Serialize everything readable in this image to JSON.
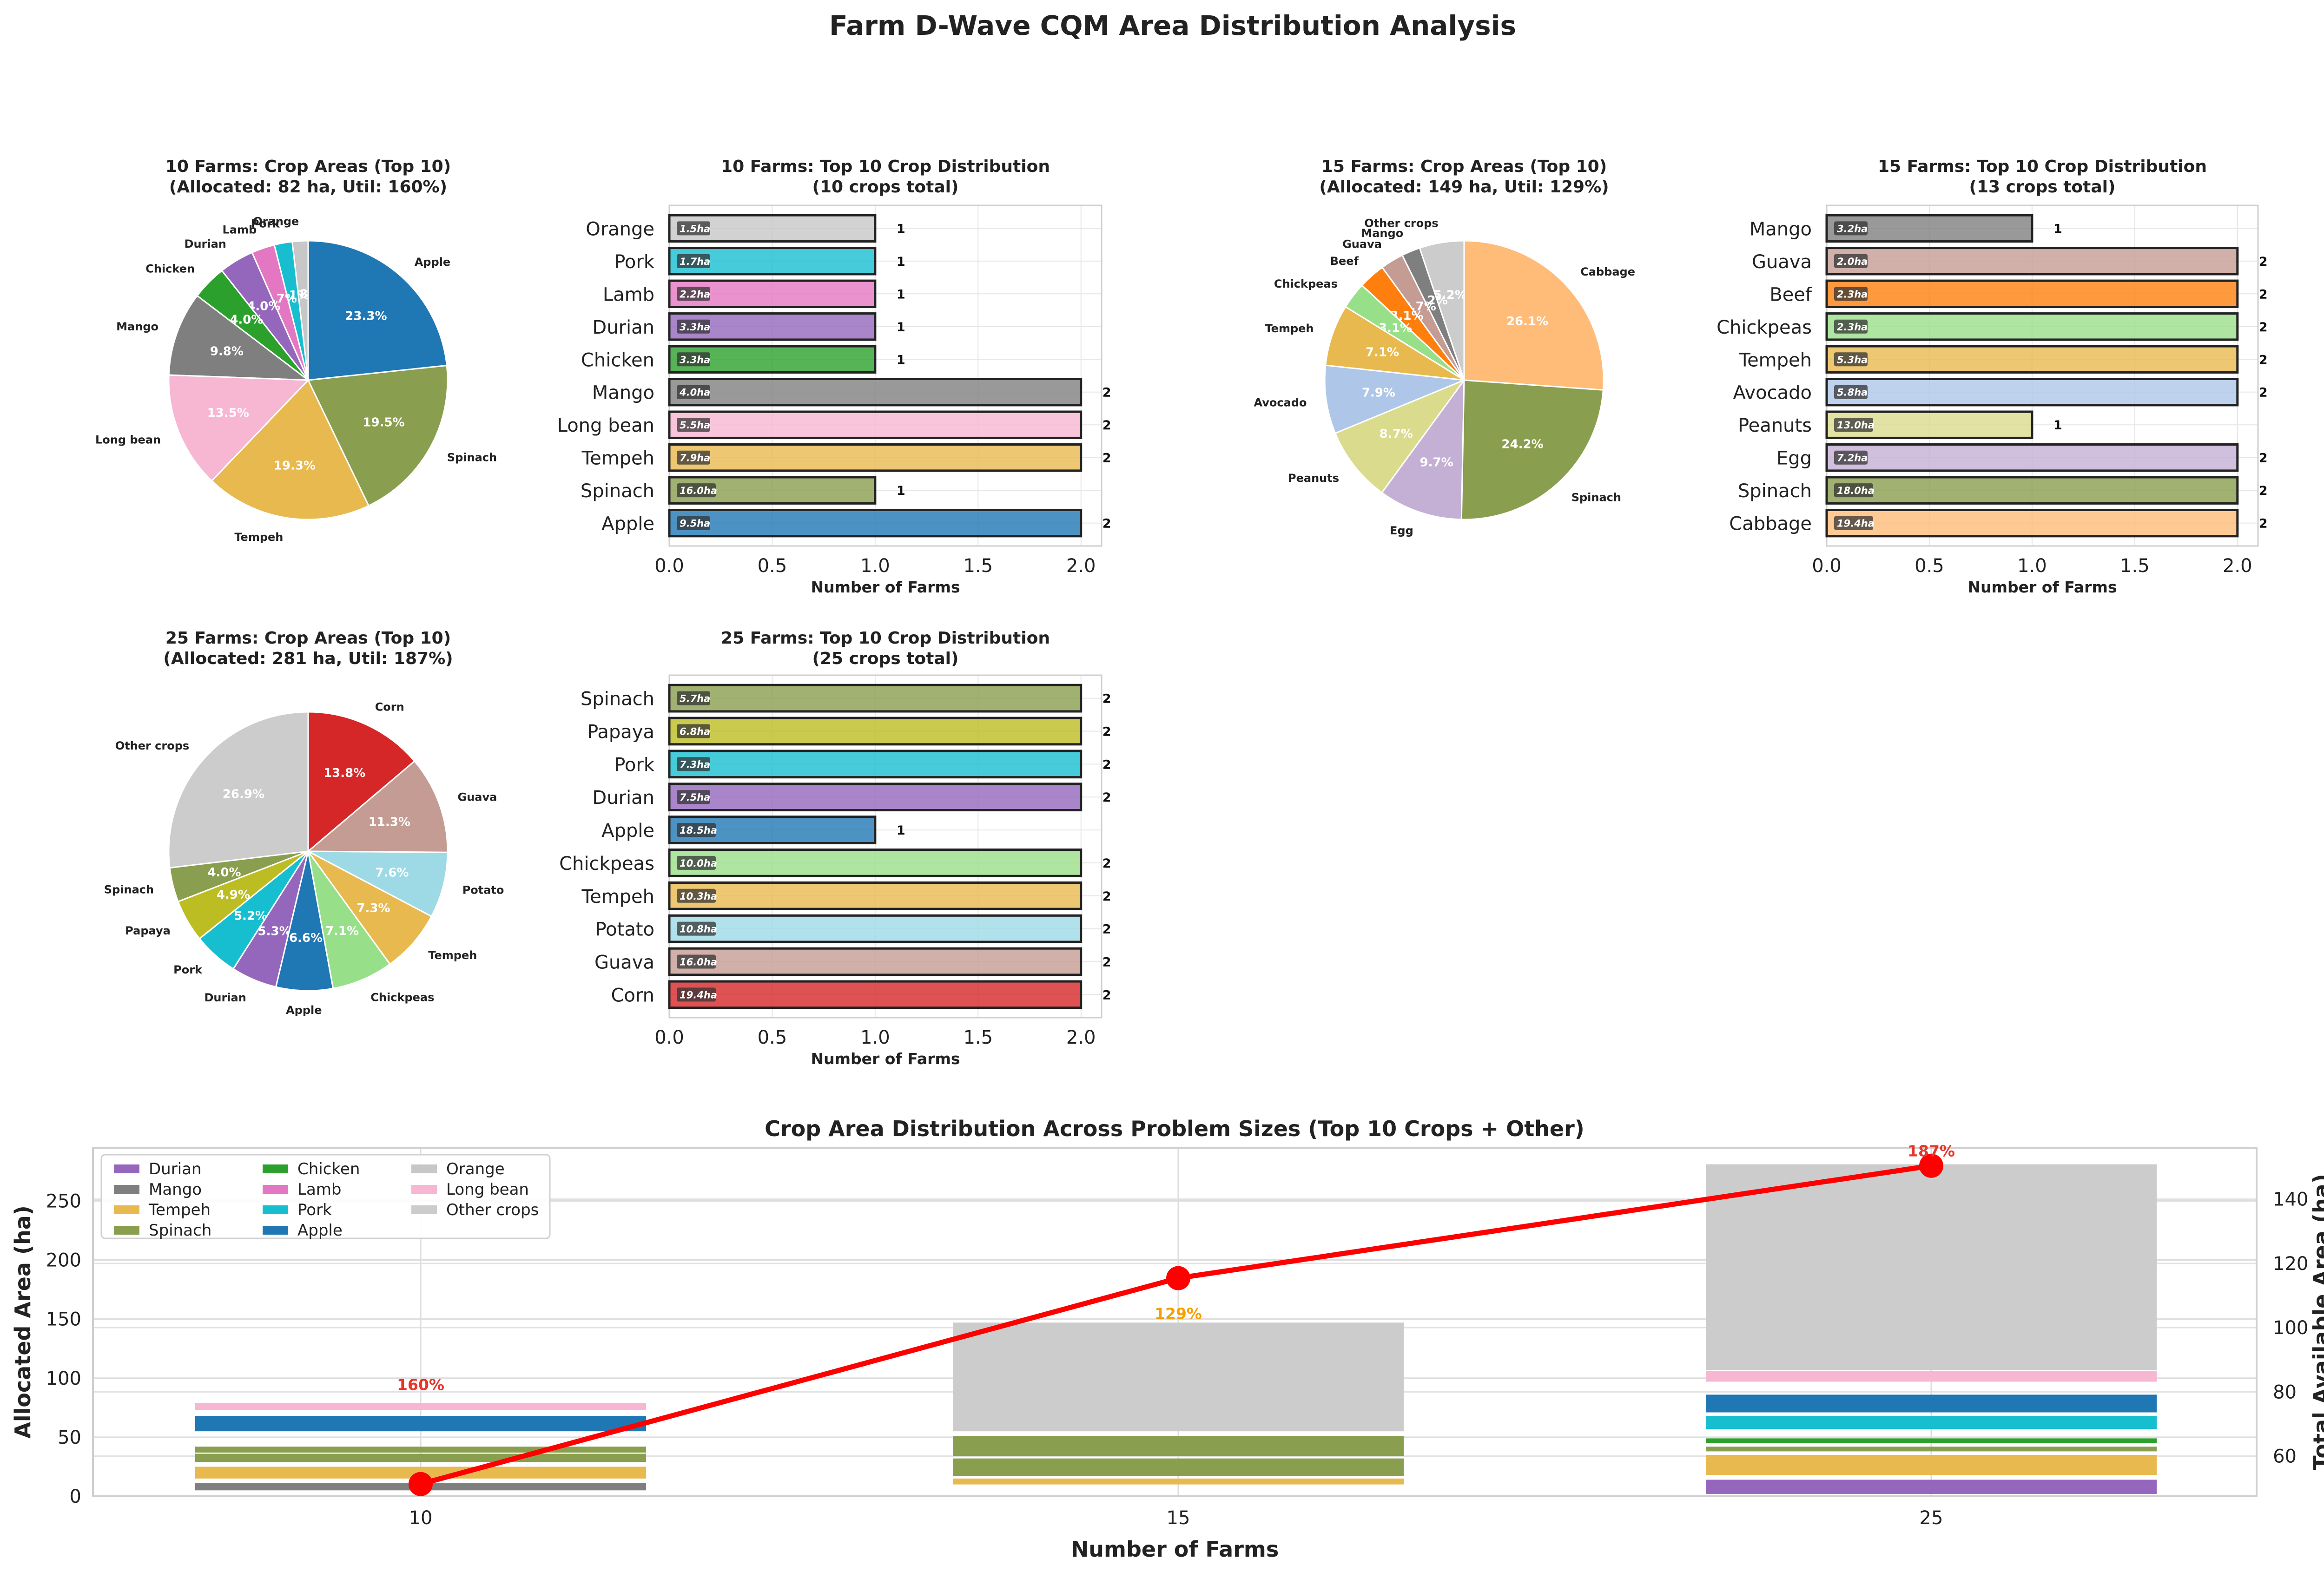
{
  "figure_title": "Farm D-Wave CQM Area Distribution Analysis",
  "colors": {
    "Apple": "#1f77b4",
    "Spinach": "#8a9e4f",
    "Tempeh": "#e8b94e",
    "Long bean": "#f7b6d2",
    "Mango": "#7f7f7f",
    "Chicken": "#2ca02c",
    "Durian": "#9467bd",
    "Lamb": "#e377c2",
    "Pork": "#17becf",
    "Orange": "#c7c7c7",
    "Cabbage": "#ffbb78",
    "Egg": "#c5b0d5",
    "Peanuts": "#dbdb8d",
    "Avocado": "#aec7e8",
    "Chickpeas": "#98df8a",
    "Beef": "#ff7f0e",
    "Guava": "#c49c94",
    "Other crops": "#cccccc",
    "Corn": "#d62728",
    "Potato": "#9edae5",
    "Papaya": "#bcbd22",
    "line": "#ff0000",
    "util_red": "#e8362a",
    "util_orange": "#f5a100"
  },
  "chart_data": [
    {
      "type": "pie",
      "id": "pie10",
      "title": "10 Farms: Crop Areas (Top 10)\n(Allocated: 82 ha, Util: 160%)",
      "labels": [
        "Orange",
        "Pork",
        "Lamb",
        "Durian",
        "Chicken",
        "Mango",
        "Long bean",
        "Tempeh",
        "Spinach",
        "Apple"
      ],
      "values": [
        1.5,
        1.7,
        2.2,
        3.3,
        3.3,
        8.0,
        11.0,
        15.8,
        16.0,
        19.1
      ],
      "pct_labels": [
        "1.8%",
        "2.1%",
        "2.7%",
        "4.0%",
        "4.0%",
        "9.8%",
        "13.5%",
        "19.3%",
        "19.5%",
        "23.3%"
      ]
    },
    {
      "type": "bar",
      "id": "bar10",
      "orientation": "horizontal",
      "title": "10 Farms: Top 10 Crop Distribution\n(10 crops total)",
      "categories": [
        "Orange",
        "Pork",
        "Lamb",
        "Durian",
        "Chicken",
        "Mango",
        "Long bean",
        "Tempeh",
        "Spinach",
        "Apple"
      ],
      "values": [
        1,
        1,
        1,
        1,
        1,
        2,
        2,
        2,
        1,
        2
      ],
      "area_labels": [
        "1.5ha",
        "1.7ha",
        "2.2ha",
        "3.3ha",
        "3.3ha",
        "4.0ha",
        "5.5ha",
        "7.9ha",
        "16.0ha",
        "9.5ha"
      ],
      "xlabel": "Number of Farms",
      "xlim": [
        0,
        2.1
      ],
      "xticks": [
        "0.0",
        "0.5",
        "1.0",
        "1.5",
        "2.0"
      ]
    },
    {
      "type": "pie",
      "id": "pie15",
      "title": "15 Farms: Crop Areas (Top 10)\n(Allocated: 149 ha, Util: 129%)",
      "labels": [
        "Other crops",
        "Mango",
        "Guava",
        "Beef",
        "Chickpeas",
        "Tempeh",
        "Avocado",
        "Peanuts",
        "Egg",
        "Spinach",
        "Cabbage"
      ],
      "values": [
        7.7,
        3.2,
        4.0,
        4.6,
        4.6,
        10.6,
        11.8,
        13.0,
        14.5,
        36.0,
        38.9
      ],
      "pct_labels": [
        "5.2%",
        "2.2%",
        "2.7%",
        "3.1%",
        "3.1%",
        "7.1%",
        "7.9%",
        "8.7%",
        "9.7%",
        "24.2%",
        "26.1%"
      ]
    },
    {
      "type": "bar",
      "id": "bar15",
      "orientation": "horizontal",
      "title": "15 Farms: Top 10 Crop Distribution\n(13 crops total)",
      "categories": [
        "Mango",
        "Guava",
        "Beef",
        "Chickpeas",
        "Tempeh",
        "Avocado",
        "Peanuts",
        "Egg",
        "Spinach",
        "Cabbage"
      ],
      "values": [
        1,
        2,
        2,
        2,
        2,
        2,
        1,
        2,
        2,
        2
      ],
      "area_labels": [
        "3.2ha",
        "2.0ha",
        "2.3ha",
        "2.3ha",
        "5.3ha",
        "5.8ha",
        "13.0ha",
        "7.2ha",
        "18.0ha",
        "19.4ha"
      ],
      "xlabel": "Number of Farms",
      "xlim": [
        0,
        2.1
      ],
      "xticks": [
        "0.0",
        "0.5",
        "1.0",
        "1.5",
        "2.0"
      ]
    },
    {
      "type": "pie",
      "id": "pie25",
      "title": "25 Farms: Crop Areas (Top 10)\n(Allocated: 281 ha, Util: 187%)",
      "labels": [
        "Other crops",
        "Spinach",
        "Papaya",
        "Pork",
        "Durian",
        "Apple",
        "Chickpeas",
        "Tempeh",
        "Potato",
        "Guava",
        "Corn"
      ],
      "values": [
        75.6,
        11.2,
        13.8,
        14.6,
        14.9,
        18.5,
        20.0,
        20.5,
        21.4,
        31.8,
        38.8
      ],
      "pct_labels": [
        "26.9%",
        "4.0%",
        "4.9%",
        "5.2%",
        "5.3%",
        "6.6%",
        "7.1%",
        "7.3%",
        "7.6%",
        "11.3%",
        "13.8%"
      ]
    },
    {
      "type": "bar",
      "id": "bar25",
      "orientation": "horizontal",
      "title": "25 Farms: Top 10 Crop Distribution\n(25 crops total)",
      "categories": [
        "Spinach",
        "Papaya",
        "Pork",
        "Durian",
        "Apple",
        "Chickpeas",
        "Tempeh",
        "Potato",
        "Guava",
        "Corn"
      ],
      "values": [
        2,
        2,
        2,
        2,
        1,
        2,
        2,
        2,
        2,
        2
      ],
      "area_labels": [
        "5.7ha",
        "6.8ha",
        "7.3ha",
        "7.5ha",
        "18.5ha",
        "10.0ha",
        "10.3ha",
        "10.8ha",
        "16.0ha",
        "19.4ha"
      ],
      "xlabel": "Number of Farms",
      "xlim": [
        0,
        2.1
      ],
      "xticks": [
        "0.0",
        "0.5",
        "1.0",
        "1.5",
        "2.0"
      ]
    },
    {
      "type": "bar",
      "id": "combo",
      "stacked": true,
      "title": "Crop Area Distribution Across Problem Sizes (Top 10 Crops + Other)",
      "categories": [
        "10",
        "15",
        "25"
      ],
      "xlabel": "Number of Farms",
      "ylabel": "Allocated Area (ha)",
      "ylim": [
        0,
        295
      ],
      "yticks": [
        0,
        50,
        100,
        150,
        200,
        250
      ],
      "legend": [
        "Durian",
        "Mango",
        "Tempeh",
        "Spinach",
        "Chicken",
        "Lamb",
        "Pork",
        "Apple",
        "Orange",
        "Long bean",
        "Other crops"
      ],
      "segments": [
        [
          [
            5,
            11,
            "Mango"
          ],
          [
            15,
            25,
            "Tempeh"
          ],
          [
            29,
            36,
            "Spinach"
          ],
          [
            37,
            42,
            "Spinach"
          ],
          [
            55,
            68,
            "Apple"
          ],
          [
            73,
            79,
            "Long bean"
          ]
        ],
        [
          [
            10,
            15,
            "Tempeh"
          ],
          [
            17,
            32,
            "Spinach"
          ],
          [
            34,
            51,
            "Spinach"
          ],
          [
            55,
            147,
            "Other crops"
          ]
        ],
        [
          [
            2,
            14,
            "Durian"
          ],
          [
            18,
            35,
            "Tempeh"
          ],
          [
            38,
            42,
            "Spinach"
          ],
          [
            45,
            49,
            "Chicken"
          ],
          [
            57,
            68,
            "Pork"
          ],
          [
            71,
            86,
            "Apple"
          ],
          [
            97,
            106,
            "Long bean"
          ],
          [
            107,
            281,
            "Other crops"
          ]
        ]
      ],
      "secondary": {
        "ylabel": "Total Available Area (ha)",
        "ylim": [
          47.5,
          156
        ],
        "yticks": [
          60,
          80,
          100,
          120,
          140
        ],
        "values": [
          51.3,
          115.4,
          150.4
        ],
        "util_labels": [
          "160%",
          "129%",
          "187%"
        ]
      }
    }
  ]
}
